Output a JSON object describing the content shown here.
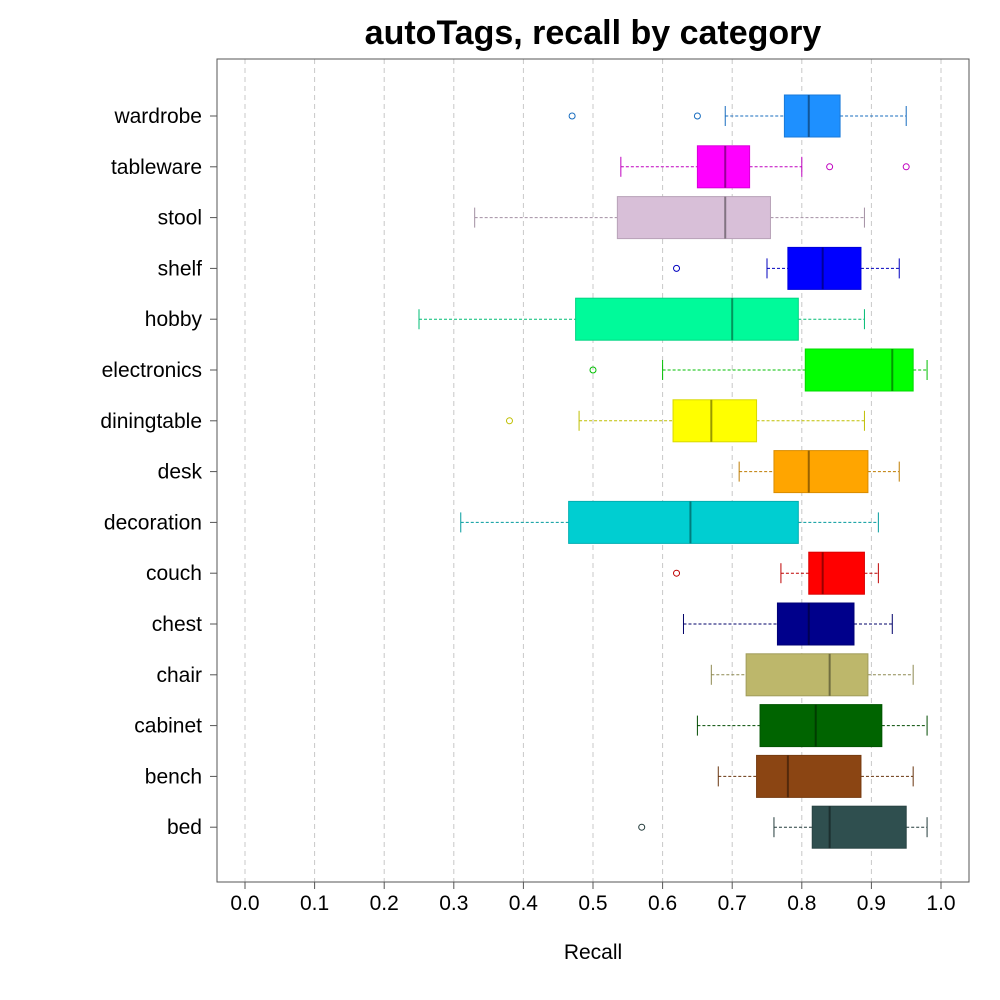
{
  "chart_data": {
    "type": "boxplot",
    "orientation": "horizontal",
    "title": "autoTags, recall by category",
    "xlabel": "Recall",
    "xlim": [
      0.0,
      1.0
    ],
    "xticks": [
      "0.0",
      "0.1",
      "0.2",
      "0.3",
      "0.4",
      "0.5",
      "0.6",
      "0.7",
      "0.8",
      "0.9",
      "1.0"
    ],
    "grid": "vertical dashed",
    "categories": [
      {
        "name": "wardrobe",
        "color": "#1e90ff",
        "whisker_low": 0.69,
        "q1": 0.775,
        "median": 0.81,
        "q3": 0.855,
        "whisker_high": 0.95,
        "outliers": [
          0.47,
          0.65
        ]
      },
      {
        "name": "tableware",
        "color": "#ff00ff",
        "whisker_low": 0.54,
        "q1": 0.65,
        "median": 0.69,
        "q3": 0.725,
        "whisker_high": 0.8,
        "outliers": [
          0.84,
          0.95
        ]
      },
      {
        "name": "stool",
        "color": "#d8bfd8",
        "whisker_low": 0.33,
        "q1": 0.535,
        "median": 0.69,
        "q3": 0.755,
        "whisker_high": 0.89,
        "outliers": []
      },
      {
        "name": "shelf",
        "color": "#0000ff",
        "whisker_low": 0.75,
        "q1": 0.78,
        "median": 0.83,
        "q3": 0.885,
        "whisker_high": 0.94,
        "outliers": [
          0.62
        ]
      },
      {
        "name": "hobby",
        "color": "#00fa9a",
        "whisker_low": 0.25,
        "q1": 0.475,
        "median": 0.7,
        "q3": 0.795,
        "whisker_high": 0.89,
        "outliers": []
      },
      {
        "name": "electronics",
        "color": "#00ff00",
        "whisker_low": 0.6,
        "q1": 0.805,
        "median": 0.93,
        "q3": 0.96,
        "whisker_high": 0.98,
        "outliers": [
          0.5
        ]
      },
      {
        "name": "diningtable",
        "color": "#ffff00",
        "whisker_low": 0.48,
        "q1": 0.615,
        "median": 0.67,
        "q3": 0.735,
        "whisker_high": 0.89,
        "outliers": [
          0.38
        ]
      },
      {
        "name": "desk",
        "color": "#ffa500",
        "whisker_low": 0.71,
        "q1": 0.76,
        "median": 0.81,
        "q3": 0.895,
        "whisker_high": 0.94,
        "outliers": []
      },
      {
        "name": "decoration",
        "color": "#00ced1",
        "whisker_low": 0.31,
        "q1": 0.465,
        "median": 0.64,
        "q3": 0.795,
        "whisker_high": 0.91,
        "outliers": []
      },
      {
        "name": "couch",
        "color": "#ff0000",
        "whisker_low": 0.77,
        "q1": 0.81,
        "median": 0.83,
        "q3": 0.89,
        "whisker_high": 0.91,
        "outliers": [
          0.62
        ]
      },
      {
        "name": "chest",
        "color": "#00008b",
        "whisker_low": 0.63,
        "q1": 0.765,
        "median": 0.81,
        "q3": 0.875,
        "whisker_high": 0.93,
        "outliers": []
      },
      {
        "name": "chair",
        "color": "#bdb76b",
        "whisker_low": 0.67,
        "q1": 0.72,
        "median": 0.84,
        "q3": 0.895,
        "whisker_high": 0.96,
        "outliers": []
      },
      {
        "name": "cabinet",
        "color": "#006400",
        "whisker_low": 0.65,
        "q1": 0.74,
        "median": 0.82,
        "q3": 0.915,
        "whisker_high": 0.98,
        "outliers": []
      },
      {
        "name": "bench",
        "color": "#8b4513",
        "whisker_low": 0.68,
        "q1": 0.735,
        "median": 0.78,
        "q3": 0.885,
        "whisker_high": 0.96,
        "outliers": []
      },
      {
        "name": "bed",
        "color": "#2f4f4f",
        "whisker_low": 0.76,
        "q1": 0.815,
        "median": 0.84,
        "q3": 0.95,
        "whisker_high": 0.98,
        "outliers": [
          0.57
        ]
      }
    ]
  }
}
